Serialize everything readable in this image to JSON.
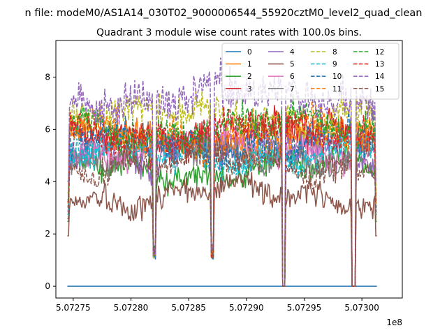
{
  "suptitle": "n file: modeM0/AS1A14_030T02_9000006544_55920cztM0_level2_quad_clean",
  "chart_data": {
    "type": "line",
    "title": "Quadrant 3 module wise count rates with 100.0s bins.",
    "xlabel": "",
    "ylabel": "",
    "x_offset_label": "1e8",
    "xlim": [
      5.072735,
      5.073035
    ],
    "ylim": [
      -0.45,
      9.4
    ],
    "x_ticks": [
      5.07275,
      5.0728,
      5.07285,
      5.0729,
      5.07295,
      5.073
    ],
    "x_tick_labels": [
      "5.07275",
      "5.07280",
      "5.07285",
      "5.07290",
      "5.07295",
      "5.07300"
    ],
    "y_ticks": [
      0,
      2,
      4,
      6,
      8
    ],
    "y_tick_labels": [
      "0",
      "2",
      "4",
      "6",
      "8"
    ],
    "x_range": [
      5.072745,
      5.073013
    ],
    "gaps": [
      {
        "from": 5.072931,
        "to": 5.072934
      },
      {
        "from": 5.072991,
        "to": 5.072995
      }
    ],
    "legend_position": "top-right",
    "grid": false,
    "series": [
      {
        "name": "0",
        "color": "#1f77b4",
        "dash": false,
        "level": 0.0
      },
      {
        "name": "1",
        "color": "#ff7f0e",
        "dash": false,
        "level": 5.6
      },
      {
        "name": "2",
        "color": "#2ca02c",
        "dash": false,
        "level": 4.5
      },
      {
        "name": "3",
        "color": "#d62728",
        "dash": false,
        "level": 5.8
      },
      {
        "name": "4",
        "color": "#9467bd",
        "dash": false,
        "level": 5.2
      },
      {
        "name": "5",
        "color": "#8c564b",
        "dash": false,
        "level": 3.5
      },
      {
        "name": "6",
        "color": "#e377c2",
        "dash": false,
        "level": 5.3
      },
      {
        "name": "7",
        "color": "#7f7f7f",
        "dash": false,
        "level": 5.0
      },
      {
        "name": "8",
        "color": "#bcbd22",
        "dash": true,
        "level": 6.5
      },
      {
        "name": "9",
        "color": "#17becf",
        "dash": true,
        "level": 5.0
      },
      {
        "name": "10",
        "color": "#1f77b4",
        "dash": true,
        "level": 5.5
      },
      {
        "name": "11",
        "color": "#ff7f0e",
        "dash": true,
        "level": 5.8
      },
      {
        "name": "12",
        "color": "#2ca02c",
        "dash": true,
        "level": 6.0
      },
      {
        "name": "13",
        "color": "#d62728",
        "dash": true,
        "level": 5.9
      },
      {
        "name": "14",
        "color": "#9467bd",
        "dash": true,
        "level": 7.3
      },
      {
        "name": "15",
        "color": "#8c564b",
        "dash": true,
        "level": 4.7
      }
    ]
  }
}
